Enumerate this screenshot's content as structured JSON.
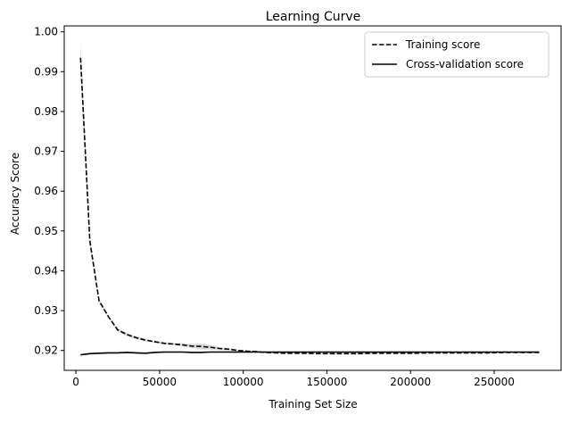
{
  "chart_data": {
    "type": "line",
    "title": "Learning Curve",
    "xlabel": "Training Set Size",
    "ylabel": "Accuracy Score",
    "xlim": [
      -7000,
      290000
    ],
    "ylim": [
      0.915,
      1.0015
    ],
    "xticks": [
      0,
      50000,
      100000,
      150000,
      200000,
      250000
    ],
    "xtick_labels": [
      "0",
      "50000",
      "100000",
      "150000",
      "200000",
      "250000"
    ],
    "yticks": [
      0.92,
      0.93,
      0.94,
      0.95,
      0.96,
      0.97,
      0.98,
      0.99,
      1.0
    ],
    "ytick_labels": [
      "0.92",
      "0.93",
      "0.94",
      "0.95",
      "0.96",
      "0.97",
      "0.98",
      "0.99",
      "1.00"
    ],
    "grid": false,
    "legend_position": "top-right",
    "series": [
      {
        "name": "Training score",
        "style": "dashed",
        "color": "#000000",
        "x": [
          2770,
          8300,
          13800,
          19400,
          24900,
          30400,
          36000,
          41500,
          47000,
          52600,
          58100,
          63600,
          69200,
          74700,
          80200,
          85800,
          91300,
          96800,
          102400,
          107900,
          113400,
          124500,
          135500,
          146600,
          157700,
          168700,
          179800,
          190900,
          201900,
          213000,
          224000,
          235100,
          246200,
          257200,
          268300,
          276900
        ],
        "values": [
          0.9935,
          0.9475,
          0.9325,
          0.9285,
          0.9252,
          0.924,
          0.9232,
          0.9226,
          0.9222,
          0.9218,
          0.9216,
          0.9214,
          0.9211,
          0.921,
          0.9208,
          0.9205,
          0.9203,
          0.92,
          0.9198,
          0.9197,
          0.9195,
          0.9193,
          0.9193,
          0.9192,
          0.9192,
          0.9192,
          0.9193,
          0.9193,
          0.9193,
          0.9194,
          0.9194,
          0.9194,
          0.9194,
          0.9195,
          0.9195,
          0.9195
        ],
        "band_halfwidth": [
          0.004,
          0.0008,
          0.0005,
          0.0004,
          0.0004,
          0.0004,
          0.0004,
          0.0003,
          0.0003,
          0.0003,
          0.0003,
          0.0004,
          0.0005,
          0.0008,
          0.0006,
          0.0004,
          0.0003,
          0.0002,
          0.0002,
          0.0002,
          0.0002,
          0.0001,
          0.0001,
          0.0001,
          0.0001,
          0.0001,
          0.0001,
          0.0001,
          0.0001,
          0.0001,
          0.0001,
          0.0001,
          0.0001,
          0.0001,
          0.0001,
          0.0001
        ]
      },
      {
        "name": "Cross-validation score",
        "style": "solid",
        "color": "#000000",
        "x": [
          2770,
          8300,
          13800,
          19400,
          24900,
          30400,
          36000,
          41500,
          47000,
          52600,
          58100,
          63600,
          69200,
          74700,
          80200,
          85800,
          91300,
          96800,
          102400,
          107900,
          113400,
          124500,
          135500,
          146600,
          157700,
          168700,
          179800,
          190900,
          201900,
          213000,
          224000,
          235100,
          246200,
          257200,
          268300,
          276900
        ],
        "values": [
          0.9189,
          0.9192,
          0.9193,
          0.9194,
          0.9194,
          0.9195,
          0.9194,
          0.9193,
          0.9195,
          0.9196,
          0.9196,
          0.9196,
          0.9195,
          0.9195,
          0.9196,
          0.9196,
          0.9196,
          0.9196,
          0.9196,
          0.9196,
          0.9196,
          0.9196,
          0.9196,
          0.9196,
          0.9196,
          0.9196,
          0.9196,
          0.9196,
          0.9196,
          0.9196,
          0.9196,
          0.9196,
          0.9196,
          0.9196,
          0.9196,
          0.9196
        ],
        "band_halfwidth": [
          0.0002,
          0.0002,
          0.0002,
          0.0002,
          0.0002,
          0.0002,
          0.0002,
          0.0002,
          0.0002,
          0.0002,
          0.0002,
          0.0002,
          0.0002,
          0.0002,
          0.0002,
          0.0002,
          0.0002,
          0.0002,
          0.0001,
          0.0001,
          0.0001,
          0.0001,
          0.0001,
          0.0001,
          0.0001,
          0.0001,
          0.0001,
          0.0001,
          0.0001,
          0.0001,
          0.0001,
          0.0001,
          0.0001,
          0.0001,
          0.0001,
          0.0001
        ]
      }
    ]
  }
}
